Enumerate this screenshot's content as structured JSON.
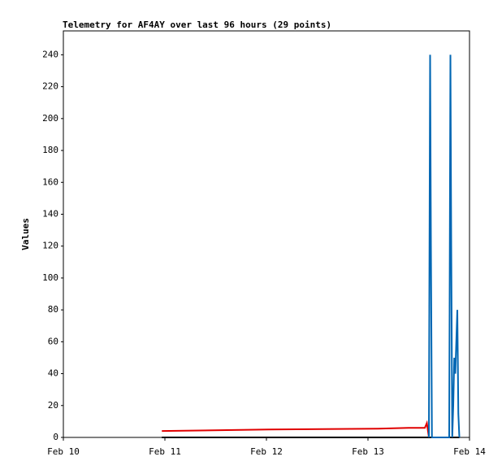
{
  "chart_data": {
    "type": "line",
    "title": "Telemetry for AF4AY over last 96 hours (29 points)",
    "y_label": "Values",
    "xlim": [
      0,
      4
    ],
    "xticks": [
      {
        "value": 0,
        "label": "Feb 10"
      },
      {
        "value": 1,
        "label": "Feb 11"
      },
      {
        "value": 2,
        "label": "Feb 12"
      },
      {
        "value": 3,
        "label": "Feb 13"
      },
      {
        "value": 4,
        "label": "Feb 14"
      }
    ],
    "ylim": [
      0,
      255
    ],
    "yticks": [
      0,
      20,
      40,
      60,
      80,
      100,
      120,
      140,
      160,
      180,
      200,
      220,
      240
    ],
    "grid": false,
    "series": [
      {
        "color": "#e00000",
        "x": [
          0.97,
          2.02,
          3.1,
          3.4,
          3.56,
          3.58,
          3.6
        ],
        "values": [
          4,
          5,
          5.5,
          6,
          6,
          9,
          0
        ]
      },
      {
        "color": "#000000",
        "x": [
          0.97,
          3.6,
          3.9
        ],
        "values": [
          0,
          0,
          0
        ]
      },
      {
        "color": "#0066b3",
        "x": [
          3.6,
          3.612,
          3.62,
          3.63,
          3.8,
          3.812,
          3.82,
          3.83,
          3.84,
          3.85,
          3.86,
          3.87,
          3.88,
          3.89,
          3.9
        ],
        "values": [
          0,
          240,
          120,
          0,
          0,
          240,
          120,
          0,
          20,
          50,
          40,
          60,
          80,
          15,
          0
        ]
      }
    ]
  }
}
